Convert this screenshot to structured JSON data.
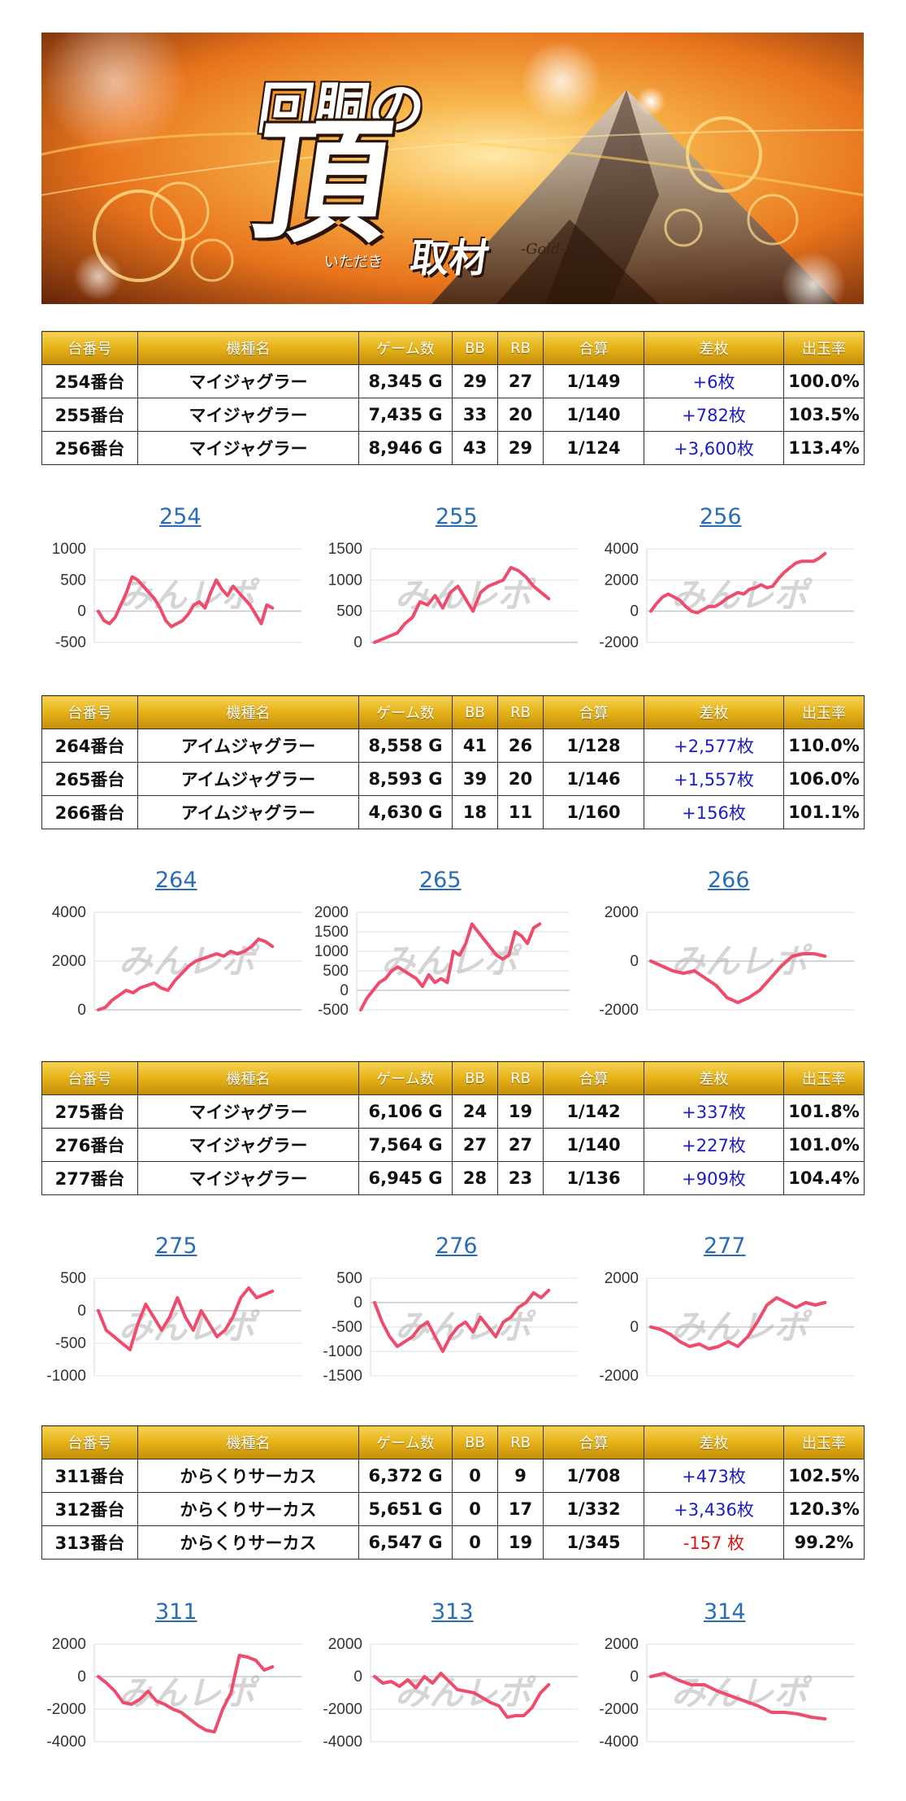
{
  "banner": {
    "title_line1": "回胴の",
    "title_big": "頂",
    "title_ruby": "いただき",
    "title_suffix": "取材",
    "tag": "-Gold-",
    "colors": {
      "fire_orange": "#e8731c",
      "gold": "#f6d255",
      "dark": "#2a1408"
    }
  },
  "watermark": "みんレポ",
  "table_headers": [
    "台番号",
    "機種名",
    "ゲーム数",
    "BB",
    "RB",
    "合算",
    "差枚",
    "出玉率"
  ],
  "colors": {
    "header_gold": "#e7b51a",
    "positive": "#1b1bc8",
    "negative": "#e01414",
    "line": "#ee4c6d",
    "title_link": "#2b6db3"
  },
  "groups": [
    {
      "rows": [
        {
          "machine_no": "254番台",
          "name": "マイジャグラー",
          "games": "8,345 G",
          "bb": "29",
          "rb": "27",
          "combined": "1/149",
          "diff": "+6枚",
          "diff_sign": "pos",
          "rate": "100.0%"
        },
        {
          "machine_no": "255番台",
          "name": "マイジャグラー",
          "games": "7,435 G",
          "bb": "33",
          "rb": "20",
          "combined": "1/140",
          "diff": "+782枚",
          "diff_sign": "pos",
          "rate": "103.5%"
        },
        {
          "machine_no": "256番台",
          "name": "マイジャグラー",
          "games": "8,946 G",
          "bb": "43",
          "rb": "29",
          "combined": "1/124",
          "diff": "+3,600枚",
          "diff_sign": "pos",
          "rate": "113.4%"
        }
      ]
    },
    {
      "rows": [
        {
          "machine_no": "264番台",
          "name": "アイムジャグラー",
          "games": "8,558 G",
          "bb": "41",
          "rb": "26",
          "combined": "1/128",
          "diff": "+2,577枚",
          "diff_sign": "pos",
          "rate": "110.0%"
        },
        {
          "machine_no": "265番台",
          "name": "アイムジャグラー",
          "games": "8,593 G",
          "bb": "39",
          "rb": "20",
          "combined": "1/146",
          "diff": "+1,557枚",
          "diff_sign": "pos",
          "rate": "106.0%"
        },
        {
          "machine_no": "266番台",
          "name": "アイムジャグラー",
          "games": "4,630 G",
          "bb": "18",
          "rb": "11",
          "combined": "1/160",
          "diff": "+156枚",
          "diff_sign": "pos",
          "rate": "101.1%"
        }
      ]
    },
    {
      "rows": [
        {
          "machine_no": "275番台",
          "name": "マイジャグラー",
          "games": "6,106 G",
          "bb": "24",
          "rb": "19",
          "combined": "1/142",
          "diff": "+337枚",
          "diff_sign": "pos",
          "rate": "101.8%"
        },
        {
          "machine_no": "276番台",
          "name": "マイジャグラー",
          "games": "7,564 G",
          "bb": "27",
          "rb": "27",
          "combined": "1/140",
          "diff": "+227枚",
          "diff_sign": "pos",
          "rate": "101.0%"
        },
        {
          "machine_no": "277番台",
          "name": "マイジャグラー",
          "games": "6,945 G",
          "bb": "28",
          "rb": "23",
          "combined": "1/136",
          "diff": "+909枚",
          "diff_sign": "pos",
          "rate": "104.4%"
        }
      ]
    },
    {
      "rows": [
        {
          "machine_no": "311番台",
          "name": "からくりサーカス",
          "games": "6,372 G",
          "bb": "0",
          "rb": "9",
          "combined": "1/708",
          "diff": "+473枚",
          "diff_sign": "pos",
          "rate": "102.5%"
        },
        {
          "machine_no": "312番台",
          "name": "からくりサーカス",
          "games": "5,651 G",
          "bb": "0",
          "rb": "17",
          "combined": "1/332",
          "diff": "+3,436枚",
          "diff_sign": "pos",
          "rate": "120.3%"
        },
        {
          "machine_no": "313番台",
          "name": "からくりサーカス",
          "games": "6,547 G",
          "bb": "0",
          "rb": "19",
          "combined": "1/345",
          "diff": "-157 枚",
          "diff_sign": "neg",
          "rate": "99.2%"
        }
      ]
    }
  ],
  "chart_data": [
    {
      "type": "line",
      "title": "254",
      "ylim": [
        -500,
        1000
      ],
      "yticks": [
        1000,
        500,
        0,
        -500
      ],
      "grid": true,
      "series": [
        {
          "values": [
            0,
            -150,
            -200,
            -100,
            100,
            300,
            550,
            500,
            400,
            300,
            200,
            50,
            -150,
            -250,
            -200,
            -150,
            -50,
            100,
            150,
            50,
            300,
            500,
            350,
            250,
            400,
            300,
            200,
            100,
            -50,
            -200,
            100,
            50
          ]
        }
      ]
    },
    {
      "type": "line",
      "title": "255",
      "ylim": [
        0,
        1500
      ],
      "yticks": [
        1500,
        1000,
        500,
        0
      ],
      "grid": true,
      "series": [
        {
          "values": [
            0,
            50,
            100,
            150,
            300,
            400,
            650,
            600,
            750,
            550,
            800,
            900,
            700,
            500,
            800,
            900,
            950,
            1000,
            1200,
            1150,
            1050,
            900,
            800,
            700
          ]
        }
      ]
    },
    {
      "type": "line",
      "title": "256",
      "ylim": [
        -2000,
        4000
      ],
      "yticks": [
        4000,
        2000,
        0,
        -2000
      ],
      "grid": true,
      "series": [
        {
          "values": [
            0,
            500,
            900,
            1100,
            900,
            700,
            300,
            0,
            -100,
            100,
            300,
            300,
            500,
            800,
            1000,
            1200,
            1100,
            1400,
            1500,
            1700,
            1500,
            1600,
            2100,
            2500,
            2800,
            3100,
            3200,
            3200,
            3200,
            3400,
            3700
          ]
        }
      ]
    },
    {
      "type": "line",
      "title": "264",
      "ylim": [
        0,
        4000
      ],
      "yticks": [
        4000,
        2000,
        0
      ],
      "grid": true,
      "series": [
        {
          "values": [
            0,
            100,
            400,
            600,
            800,
            700,
            900,
            1000,
            1100,
            900,
            800,
            1200,
            1500,
            1800,
            2000,
            2100,
            2200,
            2300,
            2200,
            2400,
            2300,
            2400,
            2600,
            2900,
            2800,
            2600
          ]
        }
      ]
    },
    {
      "type": "line",
      "title": "265",
      "ylim": [
        -500,
        2000
      ],
      "yticks": [
        2000,
        1500,
        1000,
        500,
        0,
        -500
      ],
      "grid": true,
      "series": [
        {
          "values": [
            -500,
            -200,
            0,
            200,
            300,
            500,
            600,
            500,
            400,
            300,
            100,
            400,
            200,
            300,
            200,
            1000,
            900,
            1200,
            1700,
            1500,
            1300,
            1100,
            900,
            800,
            900,
            1500,
            1400,
            1200,
            1600,
            1700
          ]
        }
      ]
    },
    {
      "type": "line",
      "title": "266",
      "ylim": [
        -2000,
        2000
      ],
      "yticks": [
        2000,
        0,
        -2000
      ],
      "grid": true,
      "series": [
        {
          "values": [
            0,
            -200,
            -400,
            -500,
            -400,
            -700,
            -1000,
            -1500,
            -1700,
            -1500,
            -1200,
            -700,
            -200,
            200,
            300,
            300,
            200
          ]
        }
      ]
    },
    {
      "type": "line",
      "title": "275",
      "ylim": [
        -1000,
        500
      ],
      "yticks": [
        500,
        0,
        -500,
        -1000
      ],
      "grid": true,
      "series": [
        {
          "values": [
            0,
            -300,
            -400,
            -500,
            -600,
            -200,
            100,
            -100,
            -300,
            -100,
            200,
            -100,
            -300,
            0,
            -200,
            -400,
            -300,
            -100,
            200,
            350,
            200,
            250,
            300
          ]
        }
      ]
    },
    {
      "type": "line",
      "title": "276",
      "ylim": [
        -1500,
        500
      ],
      "yticks": [
        500,
        0,
        -500,
        -1000,
        -1500
      ],
      "grid": true,
      "series": [
        {
          "values": [
            0,
            -400,
            -700,
            -900,
            -800,
            -700,
            -500,
            -400,
            -700,
            -1000,
            -700,
            -500,
            -400,
            -600,
            -300,
            -500,
            -700,
            -400,
            -300,
            -100,
            0,
            200,
            100,
            250
          ]
        }
      ]
    },
    {
      "type": "line",
      "title": "277",
      "ylim": [
        -2000,
        2000
      ],
      "yticks": [
        2000,
        0,
        -2000
      ],
      "grid": true,
      "series": [
        {
          "values": [
            0,
            -100,
            -300,
            -600,
            -800,
            -700,
            -900,
            -800,
            -600,
            -800,
            -400,
            200,
            900,
            1200,
            1000,
            800,
            1000,
            900,
            1000
          ]
        }
      ]
    },
    {
      "type": "line",
      "title": "311",
      "ylim": [
        -4000,
        2000
      ],
      "yticks": [
        2000,
        0,
        -2000,
        -4000
      ],
      "grid": true,
      "series": [
        {
          "values": [
            0,
            -400,
            -900,
            -1600,
            -1700,
            -1400,
            -900,
            -1500,
            -1700,
            -2000,
            -2200,
            -2600,
            -3000,
            -3300,
            -3400,
            -2000,
            -1000,
            1300,
            1200,
            1000,
            400,
            600
          ]
        }
      ]
    },
    {
      "type": "line",
      "title": "313",
      "ylim": [
        -4000,
        2000
      ],
      "yticks": [
        2000,
        0,
        -2000,
        -4000
      ],
      "grid": true,
      "series": [
        {
          "values": [
            0,
            -400,
            -300,
            -600,
            -200,
            -700,
            0,
            -400,
            200,
            -300,
            -800,
            -900,
            -1000,
            -1300,
            -1600,
            -1800,
            -2500,
            -2400,
            -2400,
            -1900,
            -1000,
            -500
          ]
        }
      ]
    },
    {
      "type": "line",
      "title": "314",
      "ylim": [
        -4000,
        2000
      ],
      "yticks": [
        2000,
        0,
        -2000,
        -4000
      ],
      "grid": true,
      "series": [
        {
          "values": [
            0,
            200,
            -200,
            -500,
            -500,
            -900,
            -1200,
            -1500,
            -1800,
            -2200,
            -2200,
            -2300,
            -2500,
            -2600
          ]
        }
      ]
    }
  ]
}
